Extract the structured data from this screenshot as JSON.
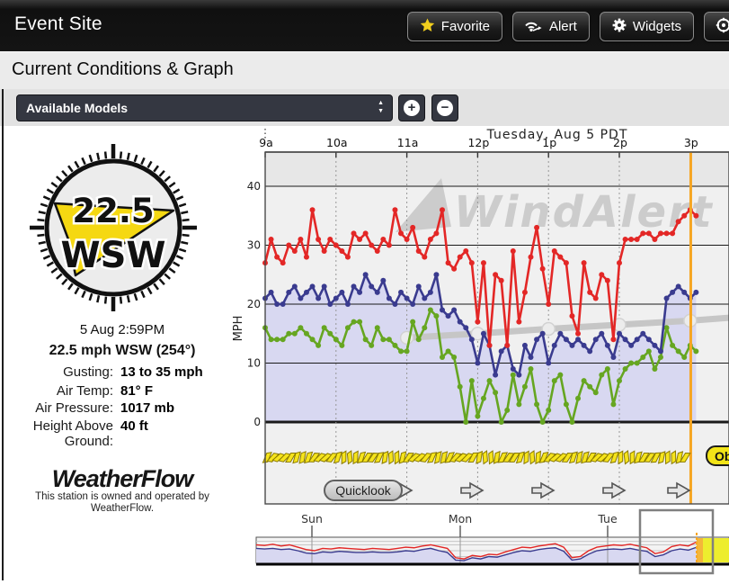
{
  "topbar": {
    "title": "Event Site",
    "buttons": [
      {
        "label": "Favorite",
        "icon": "star-icon"
      },
      {
        "label": "Alert",
        "icon": "signal-icon"
      },
      {
        "label": "Widgets",
        "icon": "gear-icon"
      },
      {
        "label": "",
        "icon": "crosshair-icon"
      }
    ]
  },
  "page": {
    "heading": "Current Conditions & Graph"
  },
  "models": {
    "select_label": "Available Models",
    "zoom_in": "+",
    "zoom_out": "−"
  },
  "conditions": {
    "compass": {
      "speed": "22.5",
      "direction": "WSW"
    },
    "timestamp": "5 Aug 2:59PM",
    "summary": "22.5 mph WSW (254°)",
    "rows": [
      {
        "label": "Gusting:",
        "value": "13 to 35 mph"
      },
      {
        "label": "Air Temp:",
        "value": "81° F"
      },
      {
        "label": "Air Pressure:",
        "value": "1017 mb"
      },
      {
        "label": "Height Above Ground:",
        "value": "40 ft"
      }
    ],
    "provider": {
      "logo": "WeatherFlow",
      "note1": "This station is owned and operated by",
      "note2": "WeatherFlow."
    }
  },
  "overlay": {
    "quicklook": "Quicklook",
    "ob_label": "Ob"
  },
  "colors": {
    "gust": "#e32726",
    "avg": "#3a3b8f",
    "lull": "#66a621",
    "avg_fill": "#d8d8f1",
    "forecast": "#c6c6c6",
    "now_line": "#f6a623",
    "barb": "#f6e41c",
    "barb_edge": "#8a7a00",
    "watermark": "#c9c9c9",
    "selection": "#808080",
    "forecast_region": "#eded2e"
  },
  "chart_data": [
    {
      "type": "line",
      "title": "Tuesday, Aug 5 PDT",
      "ylabel": "MPH",
      "ylim": [
        0,
        40
      ],
      "yticks": [
        0,
        10,
        20,
        30,
        40
      ],
      "x_hours": [
        "9a",
        "10a",
        "11a",
        "12p",
        "1p",
        "2p",
        "3p"
      ],
      "x_start_hour": 9,
      "x_interval_min": 5,
      "grid": true,
      "legend_position": "none",
      "watermark": "WindAlert",
      "now_hour": 14.983,
      "series": [
        {
          "name": "gust",
          "values": [
            27,
            31,
            28,
            27,
            30,
            29,
            31,
            28,
            36,
            31,
            29,
            31,
            30,
            29,
            28,
            32,
            31,
            32,
            30,
            29,
            31,
            30,
            36,
            32,
            31,
            33,
            29,
            28,
            31,
            32,
            36,
            27,
            26,
            28,
            29,
            27,
            17,
            27,
            13,
            25,
            24,
            13,
            29,
            17,
            22,
            28,
            33,
            26,
            20,
            29,
            28,
            27,
            18,
            15,
            27,
            22,
            21,
            25,
            24,
            14,
            27,
            31,
            31,
            31,
            32,
            32,
            31,
            32,
            32,
            32,
            34,
            35,
            36,
            35
          ]
        },
        {
          "name": "avg",
          "values": [
            21,
            22,
            20,
            20,
            22,
            23,
            21,
            22,
            23,
            21,
            23,
            20,
            21,
            22,
            20,
            23,
            22,
            25,
            23,
            22,
            24,
            21,
            20,
            22,
            21,
            20,
            23,
            21,
            22,
            25,
            19,
            18,
            19,
            17,
            16,
            14,
            10,
            15,
            13,
            8,
            12,
            13,
            9,
            8,
            13,
            11,
            14,
            15,
            10,
            13,
            15,
            14,
            13,
            14,
            13,
            12,
            14,
            15,
            13,
            11,
            15,
            14,
            13,
            14,
            15,
            14,
            13,
            12,
            21,
            22,
            23,
            22,
            21,
            22
          ]
        },
        {
          "name": "lull",
          "values": [
            16,
            14,
            14,
            14,
            15,
            15,
            16,
            15,
            14,
            13,
            16,
            15,
            14,
            13,
            16,
            17,
            17,
            14,
            13,
            16,
            14,
            14,
            13,
            12,
            12,
            17,
            14,
            16,
            19,
            18,
            11,
            12,
            11,
            6,
            0,
            7,
            1,
            4,
            7,
            5,
            0,
            2,
            8,
            3,
            6,
            9,
            3,
            0,
            2,
            7,
            8,
            3,
            0,
            4,
            7,
            6,
            5,
            8,
            9,
            3,
            7,
            9,
            10,
            10,
            11,
            12,
            9,
            11,
            16,
            13,
            12,
            11,
            13,
            12
          ]
        },
        {
          "name": "forecast",
          "x_hours_points": [
            11,
            12,
            13,
            14,
            15,
            15.55
          ],
          "values": [
            14.3,
            15.0,
            15.8,
            16.5,
            17.2,
            17.7
          ]
        }
      ]
    },
    {
      "type": "area",
      "day_labels": [
        "Sun",
        "Mon",
        "Tue"
      ],
      "ylim": [
        0,
        40
      ],
      "series": [
        {
          "name": "gust",
          "values": [
            30,
            29,
            31,
            28,
            30,
            26,
            22,
            20,
            24,
            23,
            25,
            24,
            23,
            22,
            24,
            23,
            22,
            24,
            26,
            25,
            28,
            30,
            27,
            24,
            8,
            6,
            12,
            10,
            14,
            13,
            18,
            22,
            26,
            25,
            28,
            30,
            32,
            26,
            8,
            10,
            20,
            26,
            28,
            30,
            29,
            31,
            28,
            25,
            15,
            18,
            27,
            30,
            28,
            35
          ]
        },
        {
          "name": "avg",
          "values": [
            24,
            23,
            24,
            22,
            23,
            20,
            16,
            15,
            18,
            17,
            19,
            18,
            17,
            17,
            18,
            17,
            17,
            18,
            20,
            19,
            22,
            24,
            20,
            17,
            4,
            3,
            8,
            6,
            10,
            9,
            13,
            17,
            20,
            19,
            22,
            24,
            25,
            19,
            4,
            6,
            14,
            20,
            22,
            23,
            22,
            24,
            21,
            19,
            10,
            13,
            20,
            23,
            21,
            26
          ]
        }
      ],
      "has_forecast_region": true,
      "has_selection_window": true
    }
  ]
}
